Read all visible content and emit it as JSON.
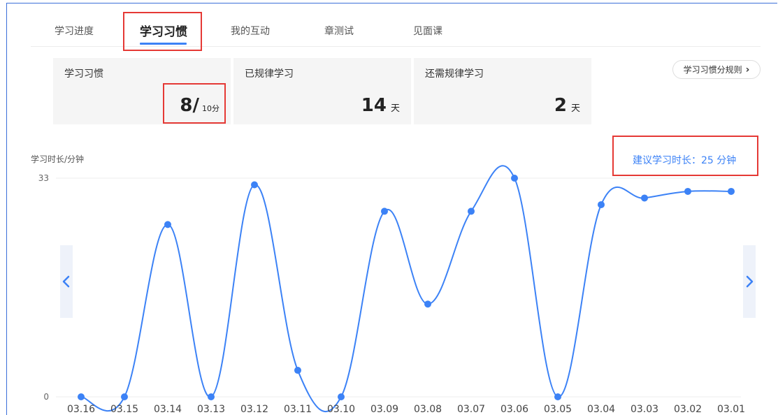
{
  "tabs": [
    {
      "label": "学习进度"
    },
    {
      "label": "学习习惯"
    },
    {
      "label": "我的互动"
    },
    {
      "label": "章测试"
    },
    {
      "label": "见面课"
    }
  ],
  "active_tab": "学习习惯",
  "cards": {
    "habit": {
      "label": "学习习惯",
      "score": "8/",
      "max": "10分"
    },
    "regular": {
      "label": "已规律学习",
      "value": "14",
      "unit": "天"
    },
    "remaining": {
      "label": "还需规律学习",
      "value": "2",
      "unit": "天"
    }
  },
  "rule_button": {
    "label": "学习习惯分规则"
  },
  "suggestion": {
    "text": "建议学习时长：25 分钟"
  },
  "colors": {
    "accent": "#3c82f6",
    "highlight": "#e53935"
  },
  "icons": {
    "prev": "chevron-left-icon",
    "next": "chevron-right-icon",
    "rule": "chevron-right-icon"
  },
  "chart_data": {
    "type": "line",
    "title": "",
    "ylabel": "学习时长/分钟",
    "xlabel": "",
    "ylim": [
      0,
      33
    ],
    "yticks": [
      0,
      33
    ],
    "grid": true,
    "categories": [
      "03.16",
      "03.15",
      "03.14",
      "03.13",
      "03.12",
      "03.11",
      "03.10",
      "03.09",
      "03.08",
      "03.07",
      "03.06",
      "03.05",
      "03.04",
      "03.03",
      "03.02",
      "03.01"
    ],
    "series": [
      {
        "values": [
          0,
          0,
          26,
          0,
          32,
          4,
          0,
          28,
          14,
          28,
          33,
          0,
          29,
          30,
          31,
          31
        ]
      }
    ]
  }
}
